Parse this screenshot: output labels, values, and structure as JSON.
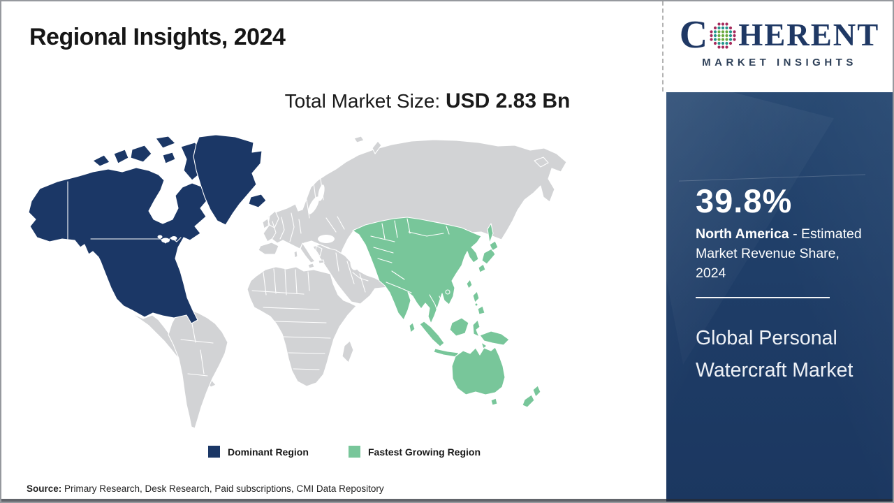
{
  "header": {
    "title": "Regional Insights, 2024"
  },
  "logo": {
    "word_start": "C",
    "word_end": "HERENT",
    "subtitle": "MARKET INSIGHTS",
    "globe_colors": {
      "green": "#6aa93f",
      "teal": "#23948c",
      "crimson": "#a62a5c"
    }
  },
  "market_size": {
    "label": "Total Market Size: ",
    "value": "USD 2.83 Bn"
  },
  "sidebar": {
    "panel_color": "#1e3c66",
    "share_value": "39.8%",
    "share_region": "North America",
    "share_desc": " - Estimated Market Revenue Share, 2024",
    "report_title": "Global Personal Watercraft Market"
  },
  "map": {
    "dominant_region": "North America",
    "fastest_growing_region": "Asia Pacific",
    "other_region": "Rest of World",
    "colors": {
      "dominant": "#1b3766",
      "fastest": "#78c69a",
      "other": "#d2d3d5",
      "ocean": "#ffffff"
    }
  },
  "legend": [
    {
      "label": "Dominant Region",
      "color": "#1b3766"
    },
    {
      "label": "Fastest Growing Region",
      "color": "#78c69a"
    }
  ],
  "source": {
    "label": "Source:",
    "text": " Primary Research, Desk Research, Paid subscriptions, CMI Data Repository"
  },
  "chart_data": {
    "type": "heatmap",
    "subtype": "choropleth-world-map",
    "title": "Regional Insights, 2024",
    "total_market_size": "USD 2.83 Bn",
    "regions": [
      {
        "name": "North America",
        "status": "Dominant Region",
        "estimated_market_revenue_share_2024_pct": 39.8
      },
      {
        "name": "Asia Pacific",
        "status": "Fastest Growing Region"
      },
      {
        "name": "Rest of World",
        "status": "Other"
      }
    ],
    "legend_entries": [
      "Dominant Region",
      "Fastest Growing Region"
    ],
    "legend_position": "bottom",
    "annotations": [
      "39.8% North America - Estimated Market Revenue Share, 2024",
      "Global Personal Watercraft Market"
    ]
  }
}
